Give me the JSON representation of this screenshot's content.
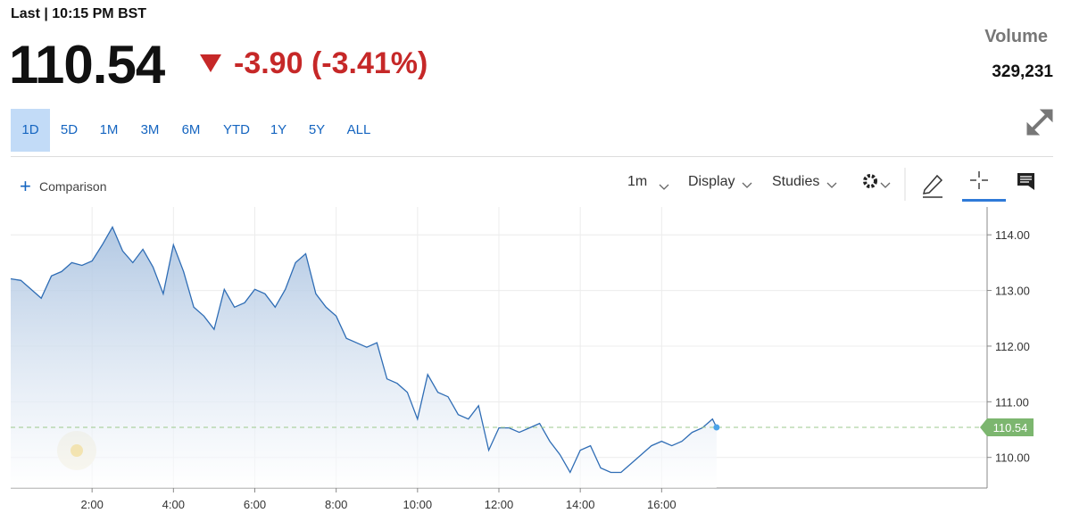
{
  "header": {
    "last": "Last | 10:15 PM BST",
    "price": "110.54",
    "change": "-3.90 (-3.41%)",
    "volume_label": "Volume",
    "volume": "329,231"
  },
  "ranges": [
    "1D",
    "5D",
    "1M",
    "3M",
    "6M",
    "YTD",
    "1Y",
    "5Y",
    "ALL"
  ],
  "toolbar": {
    "comparison": "Comparison",
    "interval": "1m",
    "display": "Display",
    "studies": "Studies"
  },
  "chart_data": {
    "type": "line",
    "color": "#2f6db5",
    "x": [
      0,
      0.25,
      0.5,
      0.75,
      1,
      1.25,
      1.5,
      1.75,
      2,
      2.25,
      2.5,
      2.75,
      3,
      3.25,
      3.5,
      3.75,
      4,
      4.25,
      4.5,
      4.75,
      5,
      5.25,
      5.5,
      5.75,
      6,
      6.25,
      6.5,
      6.75,
      7,
      7.25,
      7.5,
      7.75,
      8,
      8.25,
      8.5,
      8.75,
      9,
      9.25,
      9.5,
      9.75,
      10,
      10.25,
      10.5,
      10.75,
      11,
      11.25,
      11.5,
      11.75,
      12,
      12.25,
      12.5,
      12.75,
      13,
      13.25,
      13.5,
      13.75,
      14,
      14.25,
      14.5,
      14.75,
      15,
      15.25,
      15.5,
      15.75,
      16,
      16.25,
      16.5,
      16.75,
      17,
      17.25,
      17.35
    ],
    "values": [
      113.21,
      113.18,
      113.02,
      112.86,
      113.26,
      113.34,
      113.5,
      113.45,
      113.53,
      113.82,
      114.14,
      113.71,
      113.5,
      113.74,
      113.42,
      112.94,
      113.82,
      113.34,
      112.7,
      112.54,
      112.3,
      113.02,
      112.7,
      112.78,
      113.02,
      112.94,
      112.7,
      113.02,
      113.5,
      113.66,
      112.94,
      112.7,
      112.54,
      112.14,
      112.06,
      111.98,
      112.06,
      111.41,
      111.33,
      111.17,
      110.69,
      111.49,
      111.17,
      111.09,
      110.77,
      110.69,
      110.93,
      110.13,
      110.53,
      110.53,
      110.45,
      110.53,
      110.61,
      110.29,
      110.05,
      109.73,
      110.13,
      110.21,
      109.81,
      109.73,
      109.73,
      109.89,
      110.05,
      110.21,
      110.29,
      110.21,
      110.29,
      110.45,
      110.53,
      110.69,
      110.54
    ],
    "xlim": [
      0,
      24
    ],
    "xticks": [
      {
        "value": 2,
        "label": "2:00"
      },
      {
        "value": 4,
        "label": "4:00"
      },
      {
        "value": 6,
        "label": "6:00"
      },
      {
        "value": 8,
        "label": "8:00"
      },
      {
        "value": 10,
        "label": "10:00"
      },
      {
        "value": 12,
        "label": "12:00"
      },
      {
        "value": 14,
        "label": "14:00"
      },
      {
        "value": 16,
        "label": "16:00"
      }
    ],
    "ylim": [
      109.45,
      114.5
    ],
    "yticks": [
      {
        "value": 110,
        "label": "110.00"
      },
      {
        "value": 111,
        "label": "111.00"
      },
      {
        "value": 112,
        "label": "112.00"
      },
      {
        "value": 113,
        "label": "113.00"
      },
      {
        "value": 114,
        "label": "114.00"
      }
    ],
    "grid": true
  }
}
